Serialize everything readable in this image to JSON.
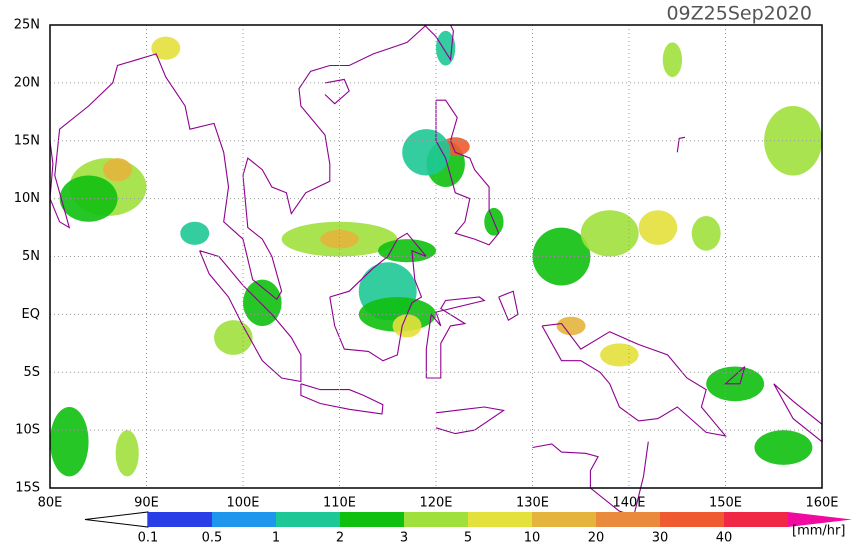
{
  "title": "09Z25Sep2020",
  "x_axis": {
    "labels": [
      "80E",
      "90E",
      "100E",
      "110E",
      "120E",
      "130E",
      "140E",
      "150E",
      "160E"
    ]
  },
  "y_axis": {
    "labels": [
      "25N",
      "20N",
      "15N",
      "10N",
      "5N",
      "EQ",
      "5S",
      "10S",
      "15S"
    ]
  },
  "colorbar": {
    "labels": [
      "0.1",
      "0.5",
      "1",
      "2",
      "3",
      "5",
      "10",
      "20",
      "30",
      "40"
    ],
    "unit": "[mm/hr]"
  }
}
